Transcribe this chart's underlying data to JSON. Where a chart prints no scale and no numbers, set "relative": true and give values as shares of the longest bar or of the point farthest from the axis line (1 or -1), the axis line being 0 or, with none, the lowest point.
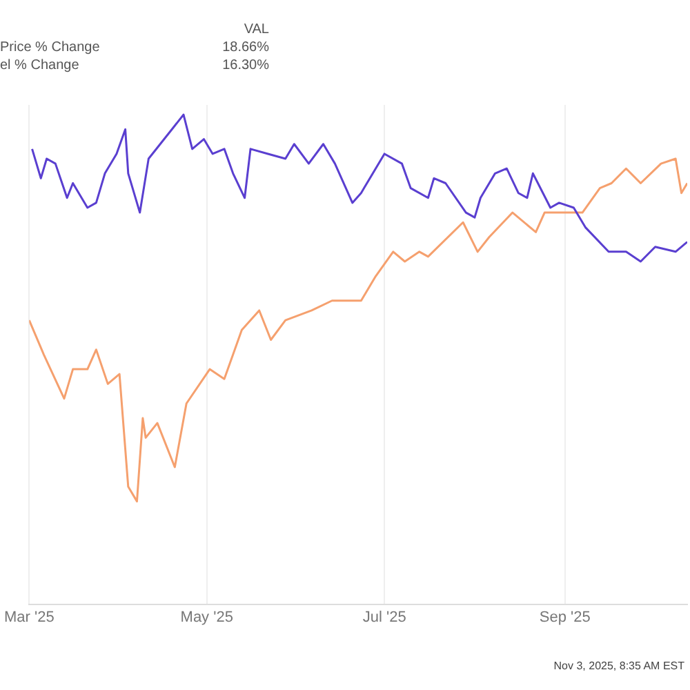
{
  "chart_data": {
    "type": "line",
    "relative": true,
    "grid": "x",
    "marker": "none",
    "line_style": "solid",
    "legend": false,
    "xlim": [
      "2025-03-01",
      "2025-10-13"
    ],
    "xticks": [
      {
        "value": "2025-03-01",
        "label": "Mar '25"
      },
      {
        "value": "2025-05-01",
        "label": "May '25"
      },
      {
        "value": "2025-07-01",
        "label": "Jul '25"
      },
      {
        "value": "2025-09-01",
        "label": "Sep '25"
      }
    ],
    "annotations": [
      "VAL",
      "Price % Change",
      "18.66%",
      "el % Change",
      "16.30%",
      "Nov 3, 2025, 8:35 AM EST"
    ],
    "series": [
      {
        "color": "#5a3fd0",
        "x": [
          "2025-03-02",
          "2025-03-05",
          "2025-03-07",
          "2025-03-10",
          "2025-03-14",
          "2025-03-16",
          "2025-03-21",
          "2025-03-24",
          "2025-03-27",
          "2025-03-31",
          "2025-04-03",
          "2025-04-04",
          "2025-04-08",
          "2025-04-11",
          "2025-04-15",
          "2025-04-19",
          "2025-04-23",
          "2025-04-26",
          "2025-04-30",
          "2025-05-03",
          "2025-05-07",
          "2025-05-10",
          "2025-05-14",
          "2025-05-16",
          "2025-05-22",
          "2025-05-28",
          "2025-05-31",
          "2025-06-05",
          "2025-06-10",
          "2025-06-14",
          "2025-06-20",
          "2025-06-23",
          "2025-06-24",
          "2025-07-01",
          "2025-07-07",
          "2025-07-10",
          "2025-07-16",
          "2025-07-18",
          "2025-07-22",
          "2025-07-29",
          "2025-08-01",
          "2025-08-03",
          "2025-08-08",
          "2025-08-12",
          "2025-08-16",
          "2025-08-19",
          "2025-08-21",
          "2025-08-27",
          "2025-08-30",
          "2025-09-04",
          "2025-09-08",
          "2025-09-16",
          "2025-09-22",
          "2025-09-27",
          "2025-10-02",
          "2025-10-09",
          "2025-10-13"
        ],
        "values": [
          0.93,
          0.87,
          0.91,
          0.9,
          0.83,
          0.86,
          0.81,
          0.82,
          0.88,
          0.92,
          0.97,
          0.88,
          0.8,
          0.91,
          0.94,
          0.97,
          1,
          0.93,
          0.95,
          0.92,
          0.93,
          0.88,
          0.83,
          0.93,
          0.92,
          0.91,
          0.94,
          0.9,
          0.94,
          0.9,
          0.82,
          0.84,
          0.85,
          0.92,
          0.9,
          0.85,
          0.83,
          0.87,
          0.86,
          0.8,
          0.79,
          0.83,
          0.88,
          0.89,
          0.84,
          0.83,
          0.88,
          0.81,
          0.82,
          0.81,
          0.77,
          0.72,
          0.72,
          0.7,
          0.73,
          0.72,
          0.74
        ]
      },
      {
        "color": "#f5a06e",
        "x": [
          "2025-03-01",
          "2025-03-06",
          "2025-03-13",
          "2025-03-16",
          "2025-03-21",
          "2025-03-24",
          "2025-03-28",
          "2025-04-01",
          "2025-04-04",
          "2025-04-07",
          "2025-04-09",
          "2025-04-10",
          "2025-04-14",
          "2025-04-20",
          "2025-04-24",
          "2025-05-02",
          "2025-05-07",
          "2025-05-13",
          "2025-05-19",
          "2025-05-23",
          "2025-05-28",
          "2025-06-06",
          "2025-06-13",
          "2025-06-19",
          "2025-06-23",
          "2025-06-28",
          "2025-07-04",
          "2025-07-08",
          "2025-07-13",
          "2025-07-16",
          "2025-07-28",
          "2025-08-02",
          "2025-08-06",
          "2025-08-14",
          "2025-08-22",
          "2025-08-25",
          "2025-09-02",
          "2025-09-07",
          "2025-09-13",
          "2025-09-17",
          "2025-09-22",
          "2025-09-27",
          "2025-10-04",
          "2025-10-09",
          "2025-10-11",
          "2025-10-13"
        ],
        "values": [
          0.58,
          0.51,
          0.42,
          0.48,
          0.48,
          0.52,
          0.45,
          0.47,
          0.24,
          0.21,
          0.38,
          0.34,
          0.37,
          0.28,
          0.41,
          0.48,
          0.46,
          0.56,
          0.6,
          0.54,
          0.58,
          0.6,
          0.62,
          0.62,
          0.62,
          0.67,
          0.72,
          0.7,
          0.72,
          0.71,
          0.78,
          0.72,
          0.75,
          0.8,
          0.76,
          0.8,
          0.8,
          0.8,
          0.85,
          0.86,
          0.89,
          0.86,
          0.9,
          0.91,
          0.84,
          0.86
        ]
      }
    ]
  }
}
